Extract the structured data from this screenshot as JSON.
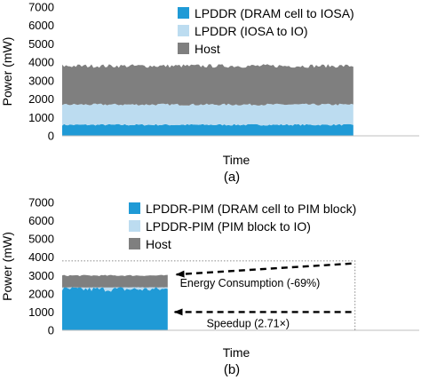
{
  "chart_data": [
    {
      "type": "area",
      "panel_label": "(a)",
      "xlabel": "Time",
      "ylabel": "Power (mW)",
      "ylim": [
        0,
        7000
      ],
      "yticks": [
        0,
        1000,
        2000,
        3000,
        4000,
        5000,
        6000,
        7000
      ],
      "xlim": [
        0,
        1
      ],
      "x_end": 0.82,
      "stacked": true,
      "legend_position": "top-right",
      "series": [
        {
          "name": "LPDDR (DRAM cell to IOSA)",
          "value": 600,
          "color": "#1f9ad6"
        },
        {
          "name": "LPDDR (IOSA to IO)",
          "value": 1100,
          "color": "#bcdcf0"
        },
        {
          "name": "Host",
          "value": 2100,
          "color": "#7f7f7f"
        }
      ]
    },
    {
      "type": "area",
      "panel_label": "(b)",
      "xlabel": "Time",
      "ylabel": "Power (mW)",
      "ylim": [
        0,
        7000
      ],
      "yticks": [
        0,
        1000,
        2000,
        3000,
        4000,
        5000,
        6000,
        7000
      ],
      "xlim": [
        0,
        1
      ],
      "x_end": 0.3,
      "stacked": true,
      "legend_position": "top-right",
      "series": [
        {
          "name": "LPDDR-PIM (DRAM cell to PIM block)",
          "value": 2250,
          "color": "#1f9ad6"
        },
        {
          "name": "LPDDR-PIM (PIM block to IO)",
          "value": 100,
          "color": "#bcdcf0"
        },
        {
          "name": "Host",
          "value": 650,
          "color": "#7f7f7f"
        }
      ],
      "reference_box": {
        "x_end": 0.82,
        "y": 3800
      },
      "annotations": [
        {
          "text": "Energy Consumption (-69%)",
          "y": 3250
        },
        {
          "text": "Speedup (2.71×)",
          "y": 1000
        }
      ]
    }
  ]
}
